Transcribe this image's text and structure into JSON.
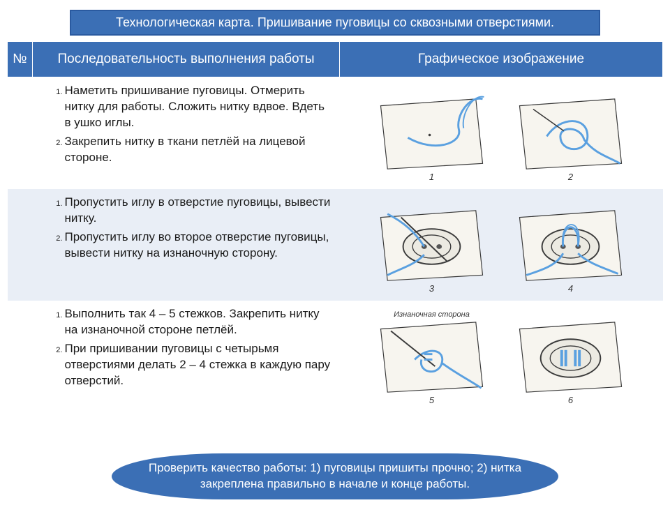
{
  "colors": {
    "banner_bg": "#3b6fb5",
    "banner_border": "#2a5aa0",
    "text_on_blue": "#ffffff",
    "alt_row_bg": "#e9eef6",
    "body_text": "#1a1a1a",
    "thread": "#5aa0e0",
    "line": "#3a3a3a"
  },
  "title": "Технологическая карта. Пришивание пуговицы со сквозными отверстиями.",
  "table": {
    "col_widths": [
      "36px",
      "440px",
      "auto"
    ],
    "headers": {
      "num": "№",
      "sequence": "Последовательность выполнения работы",
      "graphic": "Графическое изображение"
    },
    "rows": [
      {
        "alt": false,
        "steps": [
          "Наметить пришивание пуговицы. Отмерить нитку для работы. Сложить нитку вдвое. Вдеть в ушко иглы.",
          "Закрепить нитку в ткани петлёй на лицевой стороне."
        ],
        "panels": [
          {
            "num": "1",
            "kind": "mark"
          },
          {
            "num": "2",
            "kind": "knot"
          }
        ]
      },
      {
        "alt": true,
        "steps": [
          "Пропустить иглу в отверстие пуговицы, вывести нитку.",
          "Пропустить иглу во второе отверстие пуговицы, вывести нитку на изнаночную сторону."
        ],
        "panels": [
          {
            "num": "3",
            "kind": "button-needle"
          },
          {
            "num": "4",
            "kind": "button-loop"
          }
        ]
      },
      {
        "alt": false,
        "steps": [
          "Выполнить так 4 – 5 стежков. Закрепить нитку на изнаночной стороне петлёй.",
          "При пришивании пуговицы с четырьмя отверстиями делать 2 – 4 стежка в каждую пару отверстий."
        ],
        "panels": [
          {
            "num": "5",
            "kind": "back-knot",
            "caption": "Изнаночная сторона"
          },
          {
            "num": "6",
            "kind": "button-four"
          }
        ]
      }
    ]
  },
  "footer": "Проверить качество работы: 1) пуговицы пришиты прочно; 2) нитка закреплена правильно в начале и конце работы."
}
